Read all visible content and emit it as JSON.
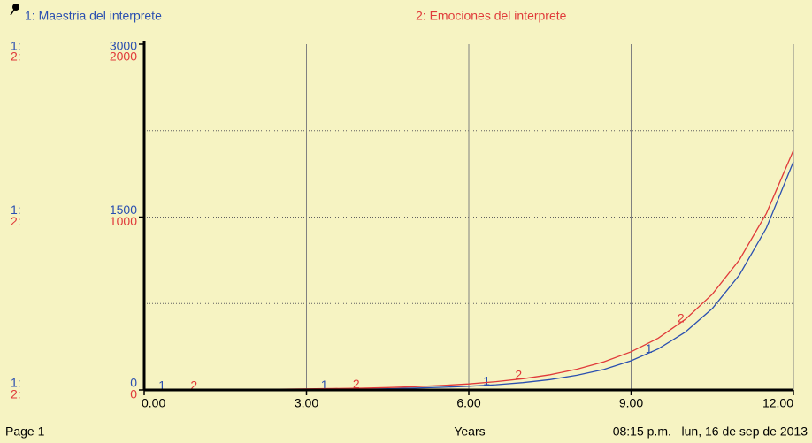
{
  "chart_data": {
    "type": "line",
    "x_label": "Years",
    "footer_left": "Page 1",
    "footer_right": "08:15 p.m.   lun, 16 de sep de 2013",
    "x": [
      0,
      0.5,
      1,
      1.5,
      2,
      2.5,
      3,
      3.5,
      4,
      4.5,
      5,
      5.5,
      6,
      6.5,
      7,
      7.5,
      8,
      8.5,
      9,
      9.5,
      10,
      10.5,
      11,
      11.5,
      12
    ],
    "series": [
      {
        "name": "1: Maestria del interprete",
        "marker": "1",
        "axis_prefix": "1:",
        "color": "#2a4fb0",
        "values": [
          0.5,
          0.8,
          1,
          1.5,
          2,
          3,
          4,
          6,
          8,
          11,
          16,
          23,
          32,
          45,
          64,
          90,
          127,
          179,
          253,
          356,
          502,
          707,
          997,
          1405,
          1980
        ]
      },
      {
        "name": "2: Emociones del interprete",
        "marker": "2",
        "axis_prefix": "2:",
        "color": "#e03a3a",
        "axis": "y2",
        "values": [
          1,
          1,
          2,
          2,
          3,
          4,
          6,
          8,
          10,
          14,
          19,
          26,
          35,
          48,
          65,
          88,
          120,
          163,
          221,
          300,
          408,
          554,
          752,
          1021,
          1386
        ]
      }
    ],
    "xlim": [
      0,
      12
    ],
    "xticks": [
      {
        "value": 0,
        "label": "0.00"
      },
      {
        "value": 3,
        "label": "3.00"
      },
      {
        "value": 6,
        "label": "6.00"
      },
      {
        "value": 9,
        "label": "9.00"
      },
      {
        "value": 12,
        "label": "12.00"
      }
    ],
    "ylim": [
      0,
      3000
    ],
    "yticks": [
      0,
      1500,
      3000
    ],
    "ygrid": [
      750,
      1500,
      2250
    ],
    "y2lim": [
      0,
      2000
    ],
    "y2ticks": [
      0,
      1000,
      2000
    ],
    "grid": true
  }
}
